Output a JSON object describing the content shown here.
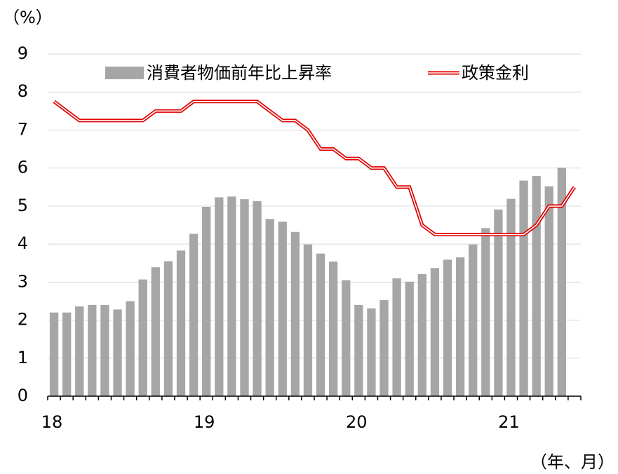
{
  "chart_data": {
    "type": "bar_line",
    "y_unit_label": "（%）",
    "x_unit_label": "（年、月）",
    "categories": [
      "18",
      null,
      null,
      null,
      null,
      null,
      null,
      null,
      null,
      null,
      null,
      null,
      "19",
      null,
      null,
      null,
      null,
      null,
      null,
      null,
      null,
      null,
      null,
      null,
      "20",
      null,
      null,
      null,
      null,
      null,
      null,
      null,
      null,
      null,
      null,
      null,
      "21",
      null,
      null,
      null,
      null,
      null
    ],
    "series": [
      {
        "name": "消費者物価前年比上昇率",
        "type": "bar",
        "color": "#a6a6a6",
        "values": [
          2.2,
          2.2,
          2.36,
          2.4,
          2.4,
          2.28,
          2.5,
          3.07,
          3.39,
          3.55,
          3.83,
          4.27,
          4.98,
          5.23,
          5.25,
          5.18,
          5.13,
          4.66,
          4.59,
          4.32,
          3.99,
          3.75,
          3.54,
          3.05,
          2.4,
          2.31,
          2.53,
          3.1,
          3.01,
          3.21,
          3.37,
          3.59,
          3.65,
          3.99,
          4.42,
          4.91,
          5.19,
          5.67,
          5.79,
          5.52,
          6.01,
          null
        ]
      },
      {
        "name": "政策金利",
        "type": "line",
        "color": "#e00000",
        "values": [
          7.75,
          7.5,
          7.25,
          7.25,
          7.25,
          7.25,
          7.25,
          7.25,
          7.5,
          7.5,
          7.5,
          7.75,
          7.75,
          7.75,
          7.75,
          7.75,
          7.75,
          7.5,
          7.25,
          7.25,
          7.0,
          6.5,
          6.5,
          6.25,
          6.25,
          6.0,
          6.0,
          5.5,
          5.5,
          4.5,
          4.25,
          4.25,
          4.25,
          4.25,
          4.25,
          4.25,
          4.25,
          4.25,
          4.5,
          5.0,
          5.0,
          5.5
        ]
      }
    ],
    "ylim": [
      0,
      9
    ],
    "yticks": [
      0,
      1,
      2,
      3,
      4,
      5,
      6,
      7,
      8,
      9
    ],
    "grid": true
  }
}
